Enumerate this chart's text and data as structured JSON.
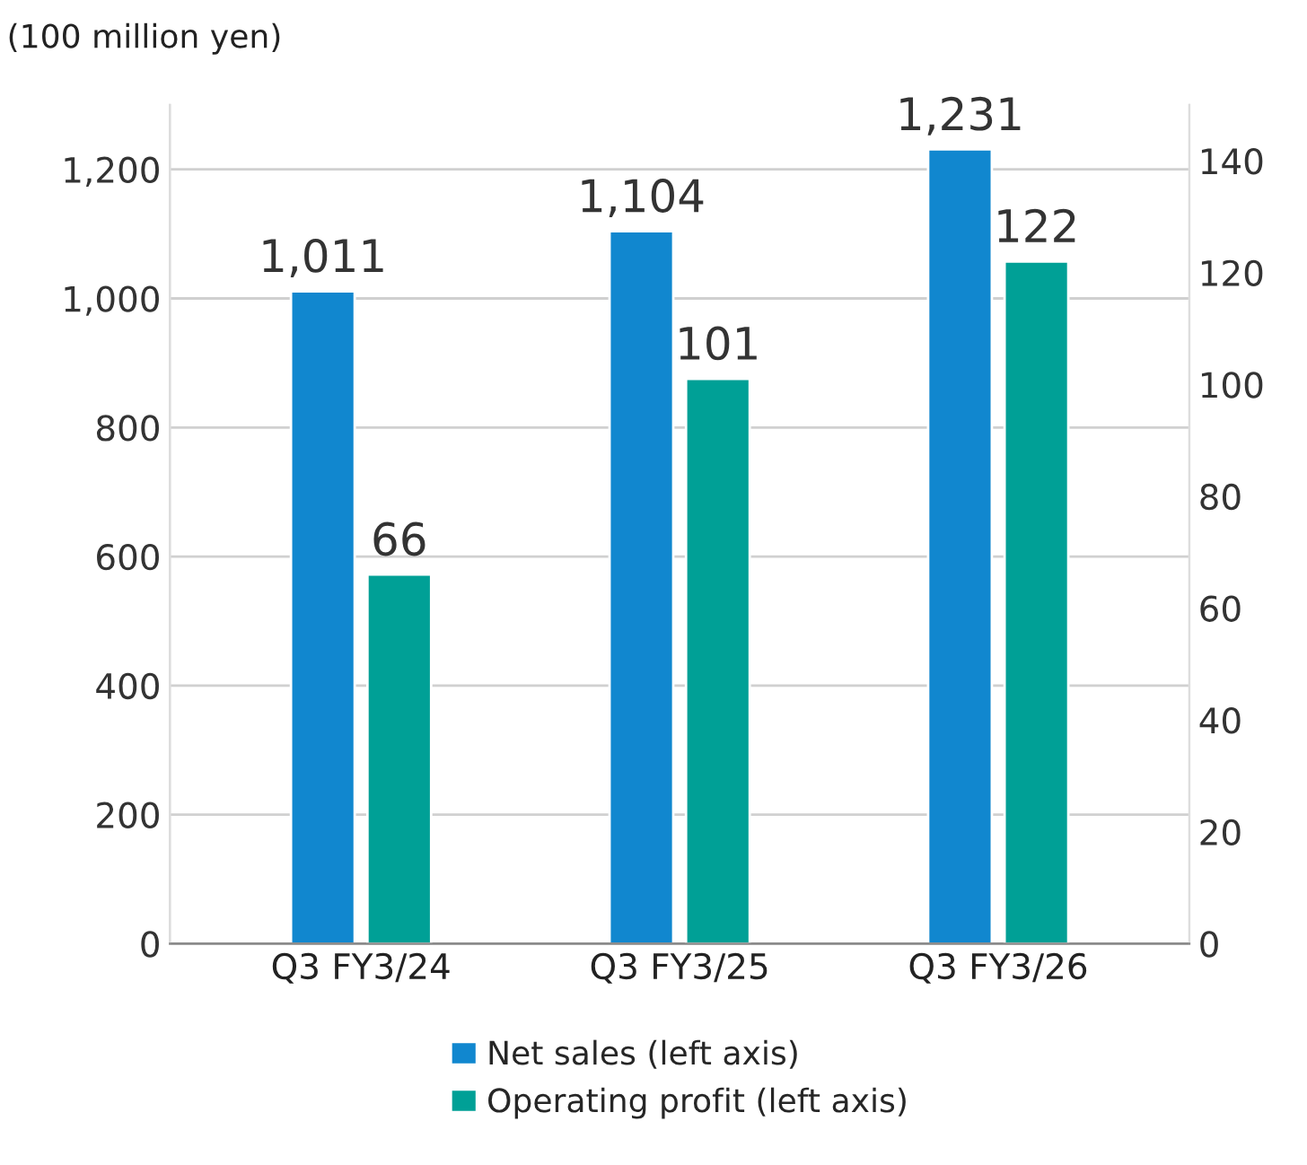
{
  "chart_data": {
    "type": "bar",
    "ylabel": "(100 million yen)",
    "categories": [
      "Q3 FY3/24",
      "Q3 FY3/25",
      "Q3 FY3/26"
    ],
    "series": [
      {
        "name": "Net sales (left axis)",
        "color": "#1187cf",
        "values": [
          1011,
          1104,
          1231
        ],
        "value_labels": [
          "1,011",
          "1,104",
          "1,231"
        ]
      },
      {
        "name": "Operating profit (left axis)",
        "color": "#00a096",
        "values": [
          66,
          101,
          122
        ],
        "value_labels": [
          "66",
          "101",
          "122"
        ],
        "axis": "y2"
      }
    ],
    "ylim": [
      0,
      1300
    ],
    "yticks": [
      0,
      {
        "value": 200,
        "label": "200"
      },
      {
        "value": 400,
        "label": "400"
      },
      {
        "value": 600,
        "label": "600"
      },
      {
        "value": 800,
        "label": "800"
      },
      {
        "value": 1000,
        "label": "1,000"
      },
      {
        "value": 1200,
        "label": "1,200"
      }
    ],
    "y2lim": [
      0,
      150
    ],
    "y2ticks": [
      0,
      20,
      40,
      60,
      80,
      100,
      120,
      140
    ],
    "grid": "y",
    "legend": "bottom"
  }
}
